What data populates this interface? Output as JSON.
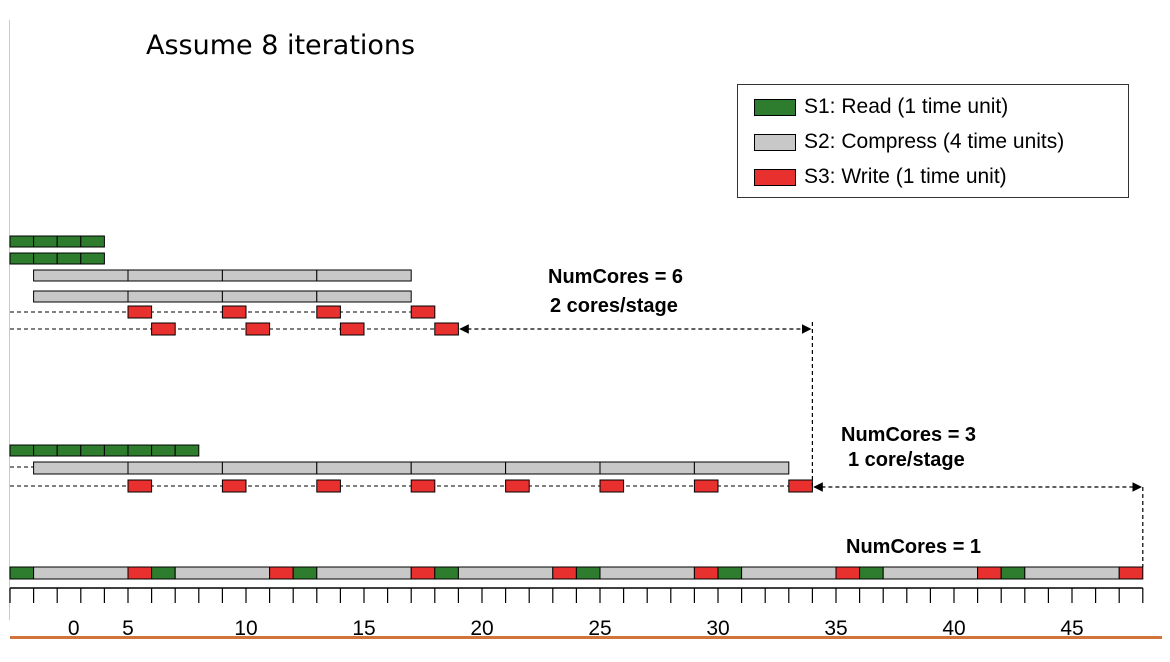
{
  "title": "Assume 8 iterations",
  "legend": {
    "items": [
      {
        "label": "S1: Read (1 time unit)",
        "color": "#2e7d2e"
      },
      {
        "label": "S2: Compress (4 time units)",
        "color": "#c8c8c8"
      },
      {
        "label": "S3: Write (1 time unit)",
        "color": "#e8302e"
      }
    ]
  },
  "colors": {
    "read": "#2e7d2e",
    "compress": "#c8c8c8",
    "write": "#e8302e"
  },
  "scenarios": [
    {
      "annotation": [
        "NumCores = 6",
        "2 cores/stage"
      ],
      "end_time": 34
    },
    {
      "annotation": [
        "NumCores = 3",
        "1 core/stage"
      ],
      "end_time": 48
    },
    {
      "annotation": [
        "NumCores = 1"
      ],
      "end_time": 48
    }
  ],
  "axis": {
    "labels": [
      {
        "text": "0",
        "t": 2.7
      },
      {
        "text": "5",
        "t": 5
      },
      {
        "text": "10",
        "t": 10
      },
      {
        "text": "15",
        "t": 15
      },
      {
        "text": "20",
        "t": 20
      },
      {
        "text": "25",
        "t": 25
      },
      {
        "text": "30",
        "t": 30
      },
      {
        "text": "35",
        "t": 35
      },
      {
        "text": "40",
        "t": 40
      },
      {
        "text": "45",
        "t": 45
      }
    ],
    "ticks": [
      0,
      1,
      2,
      3,
      4,
      5,
      6,
      7,
      8,
      9,
      10,
      11,
      12,
      13,
      14,
      15,
      16,
      17,
      18,
      19,
      20,
      21,
      22,
      23,
      24,
      25,
      26,
      27,
      28,
      29,
      30,
      31,
      32,
      33,
      34,
      35,
      36,
      37,
      38,
      39,
      40,
      41,
      42,
      43,
      44,
      45,
      46,
      47,
      48
    ]
  }
}
